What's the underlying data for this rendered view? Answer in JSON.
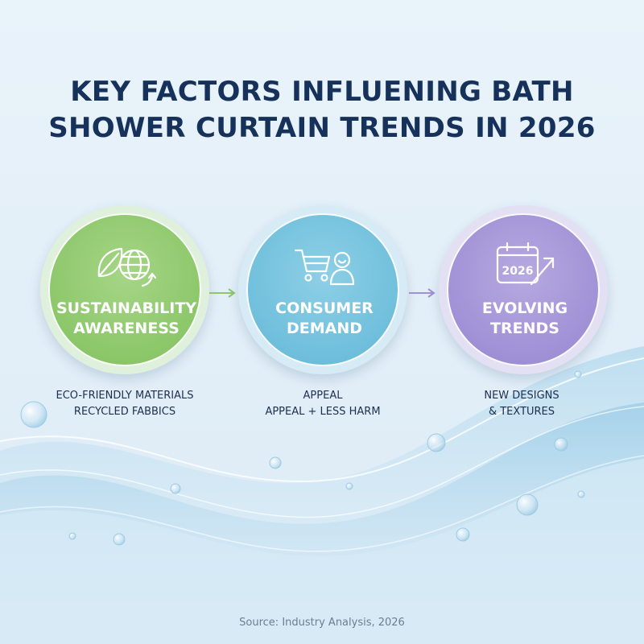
{
  "title": {
    "line1": "KEY FACTORS INFLUENING BATH",
    "line2": "SHOWER CURTAIN TRENDS IN 2026"
  },
  "colors": {
    "title": "#17325a",
    "sustainability": "#8cc76a",
    "consumer": "#6fbfdc",
    "trends": "#a090d6",
    "water": "#8ec6e4",
    "background": "#e6f1f9"
  },
  "factors": [
    {
      "icon": "leaf-globe-recycle-icon",
      "label_line1": "SUSTAINABILITY",
      "label_line2": "AWARENESS",
      "desc_line1": "ECO-FRIENDLY MATERIALS",
      "desc_line2": "RECYCLED FABBICS"
    },
    {
      "icon": "cart-person-icon",
      "label_line1": "CONSUMER",
      "label_line2": "DEMAND",
      "desc_line1": "APPEAL",
      "desc_line2": "APPEAL + LESS HARM"
    },
    {
      "icon": "calendar-trend-icon",
      "calendar_text": "2026",
      "label_line1": "EVOLVING",
      "label_line2": "TRENDS",
      "desc_line1": "NEW DESIGNS",
      "desc_line2": "& TEXTURES"
    }
  ],
  "source": "Source: Industry Analysis, 2026"
}
